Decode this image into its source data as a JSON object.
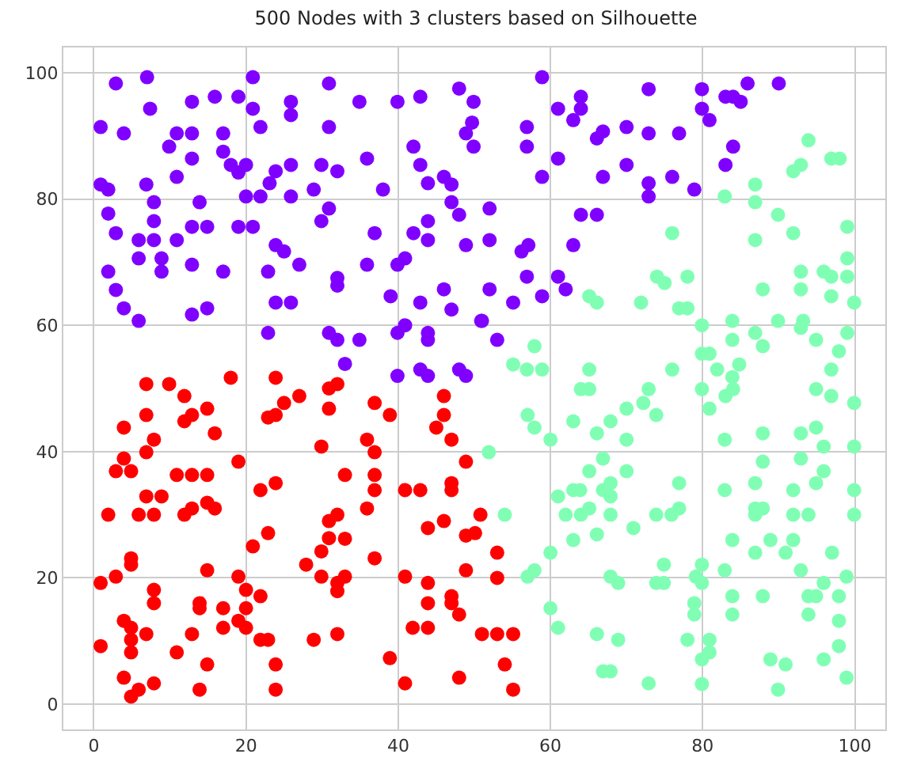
{
  "chart_data": {
    "type": "scatter",
    "title": "500 Nodes with 3 clusters based on Silhouette",
    "xlim": [
      -4,
      104
    ],
    "ylim": [
      -4,
      104
    ],
    "xticks": [
      0,
      20,
      40,
      60,
      80,
      100
    ],
    "yticks": [
      0,
      20,
      40,
      60,
      80,
      100
    ],
    "grid": true,
    "marker": "circle",
    "series": [
      {
        "color": "#8000ff",
        "x": [
          2.9,
          7.0,
          7.4,
          0.9,
          3.95,
          12.9,
          15.9,
          19.0,
          20.9,
          20.9,
          21.9,
          25.9,
          25.9,
          30.9,
          30.9,
          34.9,
          39.9,
          42.9,
          48.0,
          49.9,
          49.7,
          48.9,
          49.9,
          10.9,
          9.9,
          12.9,
          17.0,
          12.9,
          17.0,
          18.0,
          20.0,
          19.0,
          10.9,
          6.9,
          0.9,
          1.9,
          7.9,
          13.9,
          20.0,
          21.9,
          23.1,
          23.9,
          25.9,
          25.9,
          28.9,
          29.9,
          32.0,
          30.9,
          29.9,
          35.9,
          38.0,
          42.0,
          42.9,
          43.9,
          46.0,
          47.0,
          47.0,
          48.0,
          43.9,
          43.9,
          42.0,
          48.9,
          1.9,
          2.9,
          5.9,
          7.9,
          7.9,
          10.9,
          12.9,
          14.9,
          19.0,
          20.9,
          5.9,
          8.9,
          8.9,
          1.9,
          12.9,
          17.0,
          23.9,
          25.0,
          22.9,
          27.0,
          32.0,
          32.0,
          35.9,
          36.9,
          39.9,
          40.9,
          39.0,
          42.9,
          46.0,
          47.0,
          2.9,
          3.95,
          5.9,
          12.9,
          14.9,
          23.9,
          25.9,
          22.9,
          30.9,
          32.0,
          34.9,
          33.0,
          39.9,
          40.9,
          43.9,
          43.9,
          39.9,
          42.9,
          43.9,
          48.0,
          48.9,
          50.9,
          58.9,
          56.9,
          56.9,
          61.0,
          64.0,
          64.0,
          63.0,
          61.0,
          58.9,
          66.1,
          66.9,
          70.0,
          72.9,
          72.9,
          76.9,
          70.0,
          66.9,
          72.9,
          72.9,
          76.0,
          78.9,
          79.9,
          79.9,
          80.9,
          83.0,
          84.0,
          85.0,
          85.9,
          90.0,
          84.0,
          83.0,
          52.0,
          52.0,
          56.2,
          57.1,
          56.9,
          61.0,
          62.0,
          63.0,
          64.0,
          66.1,
          52.0,
          55.1,
          58.9,
          51.0,
          53.0
        ],
        "values": [
          98.3,
          99.3,
          94.3,
          91.4,
          90.4,
          95.4,
          96.2,
          96.2,
          99.3,
          94.3,
          91.4,
          95.4,
          93.3,
          98.3,
          91.4,
          95.4,
          95.4,
          96.2,
          97.5,
          95.4,
          92.1,
          90.4,
          88.3,
          90.4,
          88.3,
          90.4,
          90.4,
          86.4,
          87.5,
          85.4,
          85.4,
          84.2,
          83.5,
          82.3,
          82.3,
          81.5,
          79.5,
          79.5,
          80.4,
          80.4,
          82.5,
          84.4,
          85.4,
          80.4,
          81.5,
          85.4,
          84.4,
          78.5,
          76.5,
          86.4,
          81.5,
          88.3,
          85.4,
          82.5,
          83.5,
          82.3,
          79.5,
          77.5,
          76.5,
          73.5,
          74.6,
          72.7,
          77.7,
          74.6,
          73.5,
          73.5,
          76.5,
          73.5,
          75.6,
          75.6,
          75.6,
          75.6,
          70.6,
          70.6,
          68.5,
          68.5,
          69.6,
          68.5,
          72.7,
          71.7,
          68.5,
          69.6,
          67.5,
          66.3,
          69.6,
          74.6,
          69.6,
          70.6,
          64.6,
          63.6,
          65.7,
          62.5,
          65.6,
          62.7,
          60.7,
          61.7,
          62.7,
          63.6,
          63.6,
          58.8,
          58.8,
          57.7,
          57.7,
          53.9,
          58.8,
          60.0,
          58.8,
          57.7,
          52.0,
          53.0,
          52.0,
          53.0,
          52.0,
          60.7,
          99.3,
          91.4,
          88.3,
          94.3,
          96.2,
          94.3,
          92.5,
          86.4,
          83.5,
          89.6,
          90.7,
          91.4,
          97.4,
          90.4,
          90.4,
          85.4,
          83.5,
          82.5,
          80.4,
          83.5,
          81.5,
          97.4,
          94.3,
          92.5,
          96.2,
          96.2,
          95.4,
          98.3,
          98.3,
          88.3,
          85.4,
          78.5,
          73.5,
          71.7,
          72.7,
          67.7,
          67.7,
          65.7,
          72.7,
          77.5,
          77.5,
          65.7,
          63.6,
          64.6,
          60.7,
          57.7
        ]
      },
      {
        "color": "#80ffb4",
        "x": [
          93.9,
          96.9,
          98.0,
          91.9,
          92.9,
          86.9,
          82.9,
          86.9,
          89.9,
          91.9,
          86.9,
          99.0,
          99.0,
          99.0,
          99.9,
          92.9,
          95.9,
          96.9,
          96.9,
          92.9,
          87.9,
          76.0,
          74.0,
          75.0,
          78.0,
          76.9,
          78.0,
          71.9,
          65.1,
          66.1,
          57.9,
          55.1,
          56.9,
          58.9,
          65.1,
          76.0,
          79.9,
          83.9,
          83.9,
          86.9,
          89.9,
          93.2,
          92.9,
          94.9,
          99.0,
          87.9,
          97.9,
          96.9,
          79.9,
          80.9,
          81.9,
          84.8,
          83.9,
          57.0,
          57.9,
          60.0,
          51.9,
          54.0,
          57.0,
          57.9,
          60.0,
          60.0,
          61.0,
          63.0,
          64.0,
          65.1,
          66.1,
          67.9,
          70.0,
          70.0,
          72.2,
          73.9,
          72.9,
          66.9,
          65.1,
          63.0,
          63.9,
          61.0,
          62.0,
          64.0,
          65.1,
          66.9,
          67.9,
          67.9,
          70.0,
          67.9,
          70.9,
          63.0,
          66.1,
          73.9,
          75.9,
          76.9,
          76.9,
          67.9,
          68.9,
          73.9,
          74.9,
          74.9,
          66.1,
          68.9,
          66.9,
          67.9,
          72.9,
          78.0,
          79.9,
          79.9,
          80.9,
          80.9,
          78.9,
          78.9,
          79.1,
          79.9,
          79.9,
          82.9,
          83.9,
          83.9,
          79.9,
          80.9,
          83.0,
          84.0,
          82.9,
          82.9,
          83.9,
          86.9,
          88.9,
          87.9,
          87.9,
          86.9,
          86.9,
          86.9,
          87.9,
          91.9,
          91.9,
          93.9,
          91.9,
          90.9,
          92.9,
          92.9,
          94.9,
          95.9,
          95.9,
          94.9,
          94.9,
          96.9,
          99.9,
          99.9,
          99.9,
          99.9,
          97.0,
          98.9,
          92.9,
          93.9,
          94.9,
          95.9,
          93.9,
          87.9,
          97.9,
          97.9,
          97.9,
          95.9,
          98.9,
          88.9,
          90.9,
          89.9
        ],
        "values": [
          89.3,
          86.4,
          86.4,
          84.4,
          85.4,
          82.3,
          80.4,
          79.5,
          77.5,
          74.6,
          73.5,
          75.6,
          70.6,
          67.7,
          63.6,
          68.5,
          68.5,
          67.7,
          64.6,
          65.7,
          65.7,
          74.6,
          67.7,
          66.7,
          67.7,
          62.7,
          62.7,
          63.6,
          64.6,
          63.6,
          56.7,
          53.8,
          53.0,
          53.0,
          53.0,
          53.0,
          60.0,
          60.7,
          57.7,
          58.8,
          60.7,
          60.7,
          59.6,
          57.7,
          58.8,
          56.7,
          55.9,
          53.0,
          55.5,
          55.5,
          53.0,
          53.8,
          51.8,
          45.8,
          43.8,
          41.9,
          39.9,
          30.0,
          20.2,
          21.2,
          24.0,
          15.2,
          12.1,
          44.8,
          49.9,
          49.9,
          42.9,
          44.8,
          46.8,
          41.9,
          47.7,
          45.8,
          49.9,
          38.9,
          36.9,
          33.9,
          33.9,
          32.9,
          30.0,
          30.0,
          31.0,
          33.9,
          35.0,
          32.9,
          36.9,
          30.0,
          27.9,
          26.0,
          26.9,
          30.0,
          30.0,
          31.0,
          35.0,
          20.2,
          19.2,
          19.2,
          19.2,
          22.1,
          11.1,
          10.2,
          5.2,
          5.2,
          3.3,
          10.2,
          3.2,
          7.1,
          10.2,
          8.2,
          16.0,
          14.2,
          20.2,
          19.2,
          22.1,
          21.2,
          17.1,
          14.2,
          49.9,
          46.8,
          48.8,
          49.9,
          41.9,
          33.9,
          26.0,
          24.0,
          26.0,
          42.9,
          38.4,
          35.0,
          31.0,
          30.0,
          31.0,
          33.9,
          30.0,
          30.0,
          26.0,
          24.0,
          38.9,
          42.9,
          43.8,
          40.8,
          36.9,
          35.0,
          49.9,
          48.8,
          47.7,
          40.8,
          33.9,
          30.0,
          24.0,
          20.2,
          21.2,
          17.1,
          17.1,
          19.2,
          14.2,
          17.1,
          17.1,
          13.2,
          9.2,
          7.1,
          4.2,
          7.1,
          6.3,
          2.3
        ]
      },
      {
        "color": "#ff0000",
        "x": [
          6.9,
          9.9,
          11.9,
          14.9,
          18.0,
          23.9,
          6.9,
          3.95,
          7.9,
          6.9,
          11.9,
          12.9,
          15.9,
          3.95,
          2.9,
          4.9,
          10.9,
          12.9,
          14.9,
          19.0,
          6.9,
          8.9,
          1.9,
          5.9,
          7.9,
          11.9,
          12.9,
          14.9,
          15.9,
          21.9,
          23.9,
          22.9,
          20.9,
          22.9,
          23.9,
          25.0,
          27.0,
          30.9,
          30.9,
          32.0,
          29.9,
          36.9,
          38.9,
          35.9,
          36.9,
          33.0,
          36.9,
          36.9,
          35.9,
          30.9,
          32.0,
          30.9,
          33.0,
          29.9,
          27.9,
          36.9,
          4.9,
          4.9,
          0.9,
          2.9,
          7.9,
          7.9,
          14.9,
          13.9,
          13.9,
          19.0,
          20.0,
          21.9,
          17.0,
          20.0,
          17.0,
          19.0,
          20.0,
          3.95,
          4.9,
          6.9,
          4.9,
          4.9,
          0.9,
          12.9,
          10.9,
          14.9,
          21.9,
          22.9,
          23.9,
          23.9,
          13.9,
          3.95,
          5.9,
          4.9,
          7.9,
          29.9,
          32.0,
          33.0,
          32.0,
          28.9,
          32.0,
          38.9,
          40.9,
          42.9,
          46.0,
          46.0,
          45.0,
          47.0,
          48.9,
          47.0,
          47.0,
          46.0,
          43.9,
          48.9,
          50.1,
          50.8,
          48.9,
          40.9,
          43.9,
          43.9,
          47.0,
          47.0,
          48.0,
          41.9,
          43.9,
          40.9,
          48.0,
          53.0,
          53.0,
          51.0,
          53.0,
          55.1,
          54.0,
          55.1
        ],
        "values": [
          50.7,
          50.7,
          48.8,
          46.8,
          51.7,
          51.7,
          45.8,
          43.8,
          41.9,
          39.9,
          44.8,
          45.8,
          42.9,
          38.9,
          36.9,
          36.9,
          36.3,
          36.3,
          36.3,
          38.4,
          32.9,
          32.9,
          30.0,
          30.0,
          30.0,
          30.0,
          31.0,
          31.9,
          31.0,
          33.9,
          35.0,
          27.1,
          25.0,
          45.4,
          45.8,
          47.7,
          48.8,
          50.0,
          46.8,
          50.7,
          40.8,
          47.7,
          45.8,
          41.9,
          39.9,
          36.3,
          36.3,
          33.9,
          31.0,
          29.0,
          30.0,
          26.3,
          26.2,
          24.2,
          22.1,
          23.1,
          23.1,
          22.1,
          19.2,
          20.2,
          18.1,
          16.0,
          21.2,
          16.0,
          15.2,
          20.2,
          18.1,
          17.1,
          15.2,
          15.2,
          12.1,
          13.2,
          12.1,
          13.2,
          12.1,
          11.1,
          10.2,
          8.2,
          9.2,
          11.1,
          8.2,
          6.3,
          10.2,
          10.2,
          6.3,
          2.3,
          2.3,
          4.2,
          2.3,
          1.2,
          3.3,
          20.2,
          19.2,
          20.2,
          17.9,
          10.2,
          11.1,
          7.3,
          33.9,
          33.9,
          48.8,
          45.8,
          43.8,
          41.9,
          38.4,
          35.0,
          33.9,
          29.0,
          27.9,
          26.7,
          27.1,
          30.0,
          21.2,
          20.2,
          19.2,
          16.0,
          17.1,
          16.0,
          14.2,
          12.1,
          12.1,
          3.3,
          4.2,
          24.0,
          20.0,
          11.1,
          11.1,
          11.1,
          6.3,
          2.3
        ]
      }
    ]
  }
}
